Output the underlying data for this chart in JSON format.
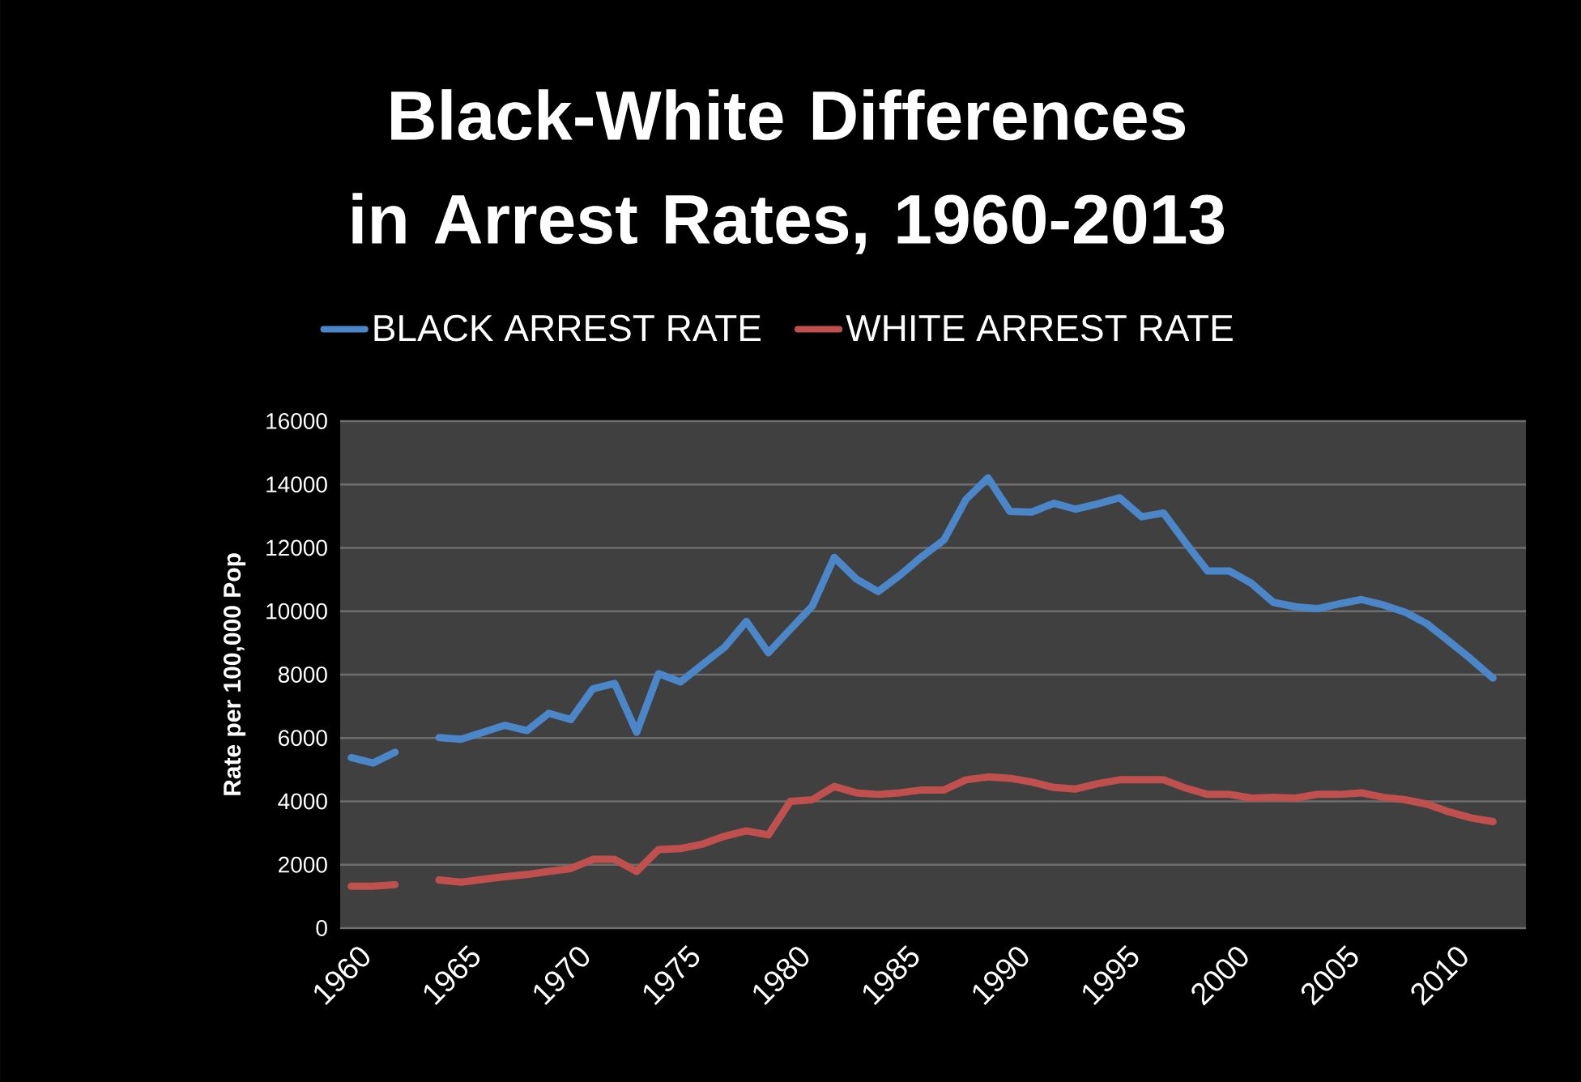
{
  "chart_data": {
    "type": "line",
    "title": "Black-White Differences in Arrest Rates, 1960-2013",
    "ylabel": "Rate per 100,000 Pop",
    "categories": [
      "1960",
      null,
      null,
      null,
      null,
      "1965",
      null,
      null,
      null,
      null,
      "1970",
      null,
      null,
      null,
      null,
      "1975",
      null,
      null,
      null,
      null,
      "1980",
      null,
      null,
      null,
      null,
      "1985",
      null,
      null,
      null,
      null,
      "1990",
      null,
      null,
      null,
      null,
      "1995",
      null,
      null,
      null,
      null,
      "2000",
      null,
      null,
      null,
      null,
      "2005",
      null,
      null,
      null,
      null,
      "2010",
      null,
      null,
      null
    ],
    "series": [
      {
        "name": "BLACK ARREST RATE",
        "color": "#4a86c8",
        "values": [
          5380,
          5210,
          5550,
          null,
          6010,
          5960,
          6180,
          6400,
          6230,
          6780,
          6580,
          7550,
          7720,
          6180,
          8030,
          7770,
          8320,
          8860,
          9680,
          8690,
          9430,
          10160,
          11700,
          11020,
          10620,
          11140,
          11730,
          12250,
          13530,
          14210,
          13150,
          13130,
          13410,
          13220,
          13390,
          13580,
          12980,
          13100,
          12160,
          11270,
          11270,
          10880,
          10280,
          10140,
          10080,
          10230,
          10370,
          10200,
          9970,
          9600,
          9050,
          8490,
          7890,
          null
        ]
      },
      {
        "name": "WHITE ARREST RATE",
        "color": "#c0504d",
        "values": [
          1320,
          1320,
          1370,
          null,
          1520,
          1450,
          1540,
          1620,
          1690,
          1790,
          1880,
          2170,
          2170,
          1790,
          2480,
          2510,
          2650,
          2900,
          3070,
          2940,
          4000,
          4050,
          4470,
          4270,
          4220,
          4270,
          4360,
          4360,
          4680,
          4770,
          4730,
          4610,
          4440,
          4390,
          4560,
          4680,
          4680,
          4680,
          4420,
          4220,
          4220,
          4100,
          4130,
          4100,
          4220,
          4220,
          4270,
          4130,
          4050,
          3910,
          3670,
          3480,
          3360,
          null
        ]
      }
    ],
    "ylim": [
      0,
      16000
    ],
    "yticks": [
      0,
      2000,
      4000,
      6000,
      8000,
      10000,
      12000,
      14000,
      16000
    ],
    "grid": "y",
    "legend": "top",
    "marker": "none",
    "line_style": "solid"
  }
}
